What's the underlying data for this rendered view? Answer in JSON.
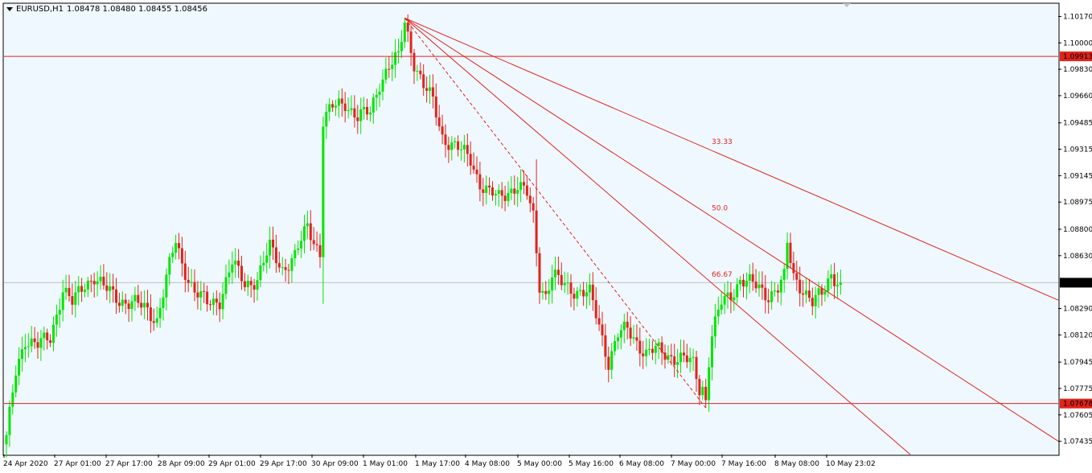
{
  "header": {
    "symbol_timeframe": "EURUSD,H1",
    "ohlc": "1.08478 1.08480 1.08455 1.08456"
  },
  "colors": {
    "background": "#f0f8ff",
    "bull": "#00e600",
    "bear": "#e0241b",
    "line": "#e0241b",
    "current_price_line": "#c0c0c0",
    "axis": "#000000"
  },
  "price_labels": {
    "hline_upper": "1.09913",
    "hline_lower": "1.07678",
    "current": "1.08456"
  },
  "fan_labels": [
    "66.67",
    "50.0",
    "33.33"
  ],
  "chart_data": {
    "type": "candlestick",
    "symbol": "EURUSD",
    "timeframe": "H1",
    "ylim": [
      1.0735,
      1.1025
    ],
    "y_ticks": [
      "1.10170",
      "1.10000",
      "1.09830",
      "1.09660",
      "1.09485",
      "1.09315",
      "1.09145",
      "1.08975",
      "1.08800",
      "1.08630",
      "1.08290",
      "1.08120",
      "1.07945",
      "1.07775",
      "1.07605",
      "1.07435"
    ],
    "x_ticks": [
      "24 Apr 2020",
      "27 Apr 01:00",
      "27 Apr 17:00",
      "28 Apr 09:00",
      "29 Apr 01:00",
      "29 Apr 17:00",
      "30 Apr 09:00",
      "1 May 01:00",
      "1 May 17:00",
      "4 May 08:00",
      "5 May 00:00",
      "5 May 16:00",
      "6 May 08:00",
      "7 May 00:00",
      "7 May 16:00",
      "8 May 08:00",
      "10 May 23:02"
    ],
    "horizontal_lines": [
      1.09913,
      1.07678
    ],
    "current_price": 1.08456,
    "fan": {
      "from_price": 1.1016,
      "to_price": 1.0765,
      "levels": [
        33.33,
        50.0,
        66.67
      ]
    },
    "anchors": [
      [
        0,
        1.0745
      ],
      [
        3,
        1.0788
      ],
      [
        6,
        1.081
      ],
      [
        10,
        1.0805
      ],
      [
        14,
        1.081
      ],
      [
        18,
        1.0842
      ],
      [
        21,
        1.0832
      ],
      [
        25,
        1.0845
      ],
      [
        28,
        1.085
      ],
      [
        31,
        1.0842
      ],
      [
        36,
        1.0835
      ],
      [
        41,
        1.0832
      ],
      [
        45,
        1.0828
      ],
      [
        48,
        1.0822
      ],
      [
        51,
        1.0848
      ],
      [
        54,
        1.0872
      ],
      [
        56,
        1.0858
      ],
      [
        60,
        1.084
      ],
      [
        64,
        1.0832
      ],
      [
        68,
        1.0835
      ],
      [
        72,
        1.0858
      ],
      [
        76,
        1.0845
      ],
      [
        80,
        1.0848
      ],
      [
        84,
        1.0868
      ],
      [
        88,
        1.0855
      ],
      [
        92,
        1.0862
      ],
      [
        96,
        1.0882
      ],
      [
        100,
        1.0865
      ],
      [
        101,
        1.095
      ],
      [
        104,
        1.0958
      ],
      [
        108,
        1.0962
      ],
      [
        112,
        1.0952
      ],
      [
        116,
        1.0955
      ],
      [
        119,
        1.0975
      ],
      [
        122,
        1.0985
      ],
      [
        125,
        1.099
      ],
      [
        127,
        1.1014
      ],
      [
        130,
        1.0988
      ],
      [
        133,
        1.0972
      ],
      [
        136,
        1.0962
      ],
      [
        139,
        1.094
      ],
      [
        142,
        1.0935
      ],
      [
        145,
        1.093
      ],
      [
        148,
        1.0925
      ],
      [
        151,
        1.091
      ],
      [
        154,
        1.0903
      ],
      [
        157,
        1.09
      ],
      [
        160,
        1.0905
      ],
      [
        163,
        1.0908
      ],
      [
        166,
        1.0902
      ],
      [
        168,
        1.0888
      ],
      [
        170,
        1.0845
      ],
      [
        172,
        1.0838
      ],
      [
        174,
        1.085
      ],
      [
        177,
        1.0845
      ],
      [
        180,
        1.0842
      ],
      [
        183,
        1.084
      ],
      [
        186,
        1.0838
      ],
      [
        189,
        1.0818
      ],
      [
        192,
        1.0795
      ],
      [
        195,
        1.0812
      ],
      [
        198,
        1.0815
      ],
      [
        201,
        1.0808
      ],
      [
        204,
        1.08
      ],
      [
        207,
        1.0802
      ],
      [
        210,
        1.08
      ],
      [
        213,
        1.0798
      ],
      [
        216,
        1.0796
      ],
      [
        219,
        1.0793
      ],
      [
        221,
        1.0778
      ],
      [
        223,
        1.078
      ],
      [
        225,
        1.0812
      ],
      [
        228,
        1.0832
      ],
      [
        231,
        1.0838
      ],
      [
        234,
        1.0848
      ],
      [
        237,
        1.0845
      ],
      [
        240,
        1.0842
      ],
      [
        243,
        1.0838
      ],
      [
        246,
        1.0842
      ],
      [
        248,
        1.0848
      ],
      [
        249,
        1.087
      ],
      [
        251,
        1.085
      ],
      [
        254,
        1.0842
      ],
      [
        257,
        1.0832
      ],
      [
        260,
        1.0838
      ],
      [
        263,
        1.0852
      ],
      [
        265,
        1.0847
      ]
    ]
  }
}
